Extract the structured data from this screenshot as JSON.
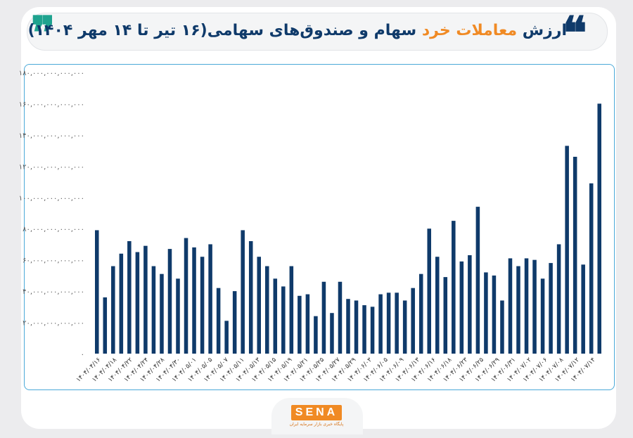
{
  "header": {
    "title_part1": "ارزش",
    "title_accent": "معاملات خرد",
    "title_part2": "سهام و صندوق‌های سهامی(۱۶ تیر تا ۱۴ مهر ۱۴۰۴)",
    "quote_open": "❞",
    "quote_close": "❝"
  },
  "brand": {
    "logo": "SENA",
    "tagline": "پایگاه خبری بازار سرمایه ایران",
    "accent_color": "#f08a24",
    "bar_color": "#0f3a6a",
    "frame_color": "#4aa9d8"
  },
  "chart_data": {
    "type": "bar",
    "ylim": [
      0,
      180000000000000
    ],
    "y_ticks": [
      0,
      20000000000000,
      40000000000000,
      60000000000000,
      80000000000000,
      100000000000000,
      120000000000000,
      140000000000000,
      160000000000000,
      180000000000000
    ],
    "y_tick_labels": [
      "۰",
      "۲۰,۰۰۰,۰۰۰,۰۰۰,۰۰۰",
      "۴۰,۰۰۰,۰۰۰,۰۰۰,۰۰۰",
      "۶۰,۰۰۰,۰۰۰,۰۰۰,۰۰۰",
      "۸۰,۰۰۰,۰۰۰,۰۰۰,۰۰۰",
      "۱۰۰,۰۰۰,۰۰۰,۰۰۰,۰۰۰",
      "۱۲۰,۰۰۰,۰۰۰,۰۰۰,۰۰۰",
      "۱۴۰,۰۰۰,۰۰۰,۰۰۰,۰۰۰",
      "۱۶۰,۰۰۰,۰۰۰,۰۰۰,۰۰۰",
      "۱۸۰,۰۰۰,۰۰۰,۰۰۰,۰۰۰"
    ],
    "x_tick_labels": [
      "۱۴۰۴/۰۴/۱۶",
      "۱۴۰۴/۰۴/۱۸",
      "۱۴۰۴/۰۴/۲۲",
      "۱۴۰۴/۰۴/۲۴",
      "۱۴۰۴/۰۴/۲۸",
      "۱۴۰۴/۰۴/۳۰",
      "۱۴۰۴/۰۵/۰۱",
      "۱۴۰۴/۰۵/۰۵",
      "۱۴۰۴/۰۵/۰۷",
      "۱۴۰۴/۰۵/۱۱",
      "۱۴۰۴/۰۵/۱۳",
      "۱۴۰۴/۰۵/۱۵",
      "۱۴۰۴/۰۵/۱۹",
      "۱۴۰۴/۰۵/۲۱",
      "۱۴۰۴/۰۵/۲۵",
      "۱۴۰۴/۰۵/۲۷",
      "۱۴۰۴/۰۵/۲۹",
      "۱۴۰۴/۰۶/۰۳",
      "۱۴۰۴/۰۶/۰۵",
      "۱۴۰۴/۰۶/۰۹",
      "۱۴۰۴/۰۶/۱۳",
      "۱۴۰۴/۰۶/۱۶",
      "۱۴۰۴/۰۶/۱۸",
      "۱۴۰۴/۰۶/۲۳",
      "۱۴۰۴/۰۶/۲۵",
      "۱۴۰۴/۰۶/۲۹",
      "۱۴۰۴/۰۶/۳۱",
      "۱۴۰۴/۰۷/۰۲",
      "۱۴۰۴/۰۷/۰۶",
      "۱۴۰۴/۰۷/۰۸",
      "۱۴۰۴/۰۷/۱۲",
      "۱۴۰۴/۰۷/۱۴"
    ],
    "values": [
      79000000000000,
      36000000000000,
      56000000000000,
      64000000000000,
      72000000000000,
      65000000000000,
      69000000000000,
      56000000000000,
      51000000000000,
      67000000000000,
      48000000000000,
      74000000000000,
      68000000000000,
      62000000000000,
      70000000000000,
      42000000000000,
      21000000000000,
      40000000000000,
      79000000000000,
      72000000000000,
      62000000000000,
      56000000000000,
      48000000000000,
      43000000000000,
      56000000000000,
      37000000000000,
      38000000000000,
      24000000000000,
      46000000000000,
      26000000000000,
      46000000000000,
      35000000000000,
      34000000000000,
      31000000000000,
      30000000000000,
      38000000000000,
      39000000000000,
      39000000000000,
      34000000000000,
      42000000000000,
      51000000000000,
      80000000000000,
      62000000000000,
      49000000000000,
      85000000000000,
      59000000000000,
      63000000000000,
      94000000000000,
      52000000000000,
      50000000000000,
      34000000000000,
      61000000000000,
      56000000000000,
      61000000000000,
      60000000000000,
      48000000000000,
      58000000000000,
      70000000000000,
      133000000000000,
      126000000000000,
      57000000000000,
      109000000000000,
      160000000000000
    ]
  }
}
